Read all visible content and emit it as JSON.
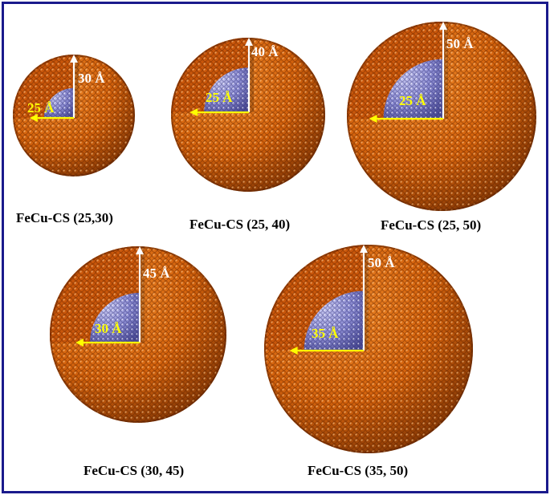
{
  "colors": {
    "frame": "#1a1a8c",
    "shell_light": "#f08a2a",
    "shell_mid": "#d4620c",
    "shell_dark": "#8a3a05",
    "core_light": "#c8c8f0",
    "core_mid": "#8c8cd2",
    "core_dark": "#4c4c96",
    "core_radius_arrow": "#ffff00",
    "shell_radius_arrow": "#ffffff"
  },
  "particles": [
    {
      "id": "p1",
      "caption": "FeCu-CS (25,30)",
      "core_label": "25 Å",
      "shell_label": "30 Å",
      "core_radius_A": 25,
      "shell_radius_A": 30
    },
    {
      "id": "p2",
      "caption": "FeCu-CS (25, 40)",
      "core_label": "25 Å",
      "shell_label": "40 Å",
      "core_radius_A": 25,
      "shell_radius_A": 40
    },
    {
      "id": "p3",
      "caption": "FeCu-CS (25, 50)",
      "core_label": "25 Å",
      "shell_label": "50 Å",
      "core_radius_A": 25,
      "shell_radius_A": 50
    },
    {
      "id": "p4",
      "caption": "FeCu-CS (30, 45)",
      "core_label": "30 Å",
      "shell_label": "45 Å",
      "core_radius_A": 30,
      "shell_radius_A": 45
    },
    {
      "id": "p5",
      "caption": "FeCu-CS (35, 50)",
      "core_label": "35 Å",
      "shell_label": "50 Å",
      "core_radius_A": 35,
      "shell_radius_A": 50
    }
  ]
}
